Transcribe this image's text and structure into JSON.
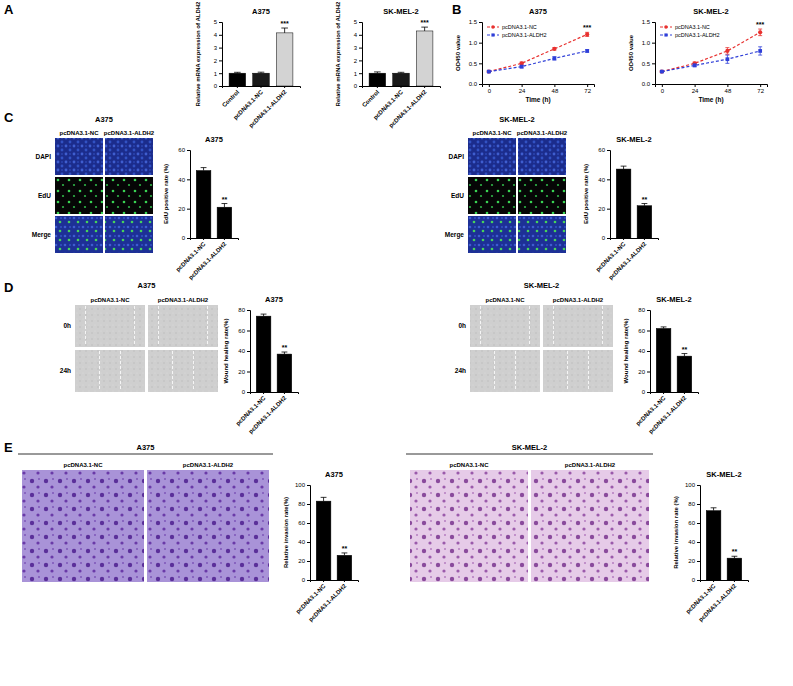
{
  "panel_letters": [
    "A",
    "B",
    "C",
    "D",
    "E"
  ],
  "chart_data": [
    {
      "type": "bar",
      "title": "A375",
      "y_label": "Relative mRNA expression of ALDH2",
      "categories": [
        "Control",
        "pcDNA3.1-NC",
        "pcDNA3.1-ALDH2"
      ],
      "values": [
        1.0,
        1.0,
        4.15
      ],
      "errors": [
        0.07,
        0.08,
        0.38
      ],
      "significance": [
        null,
        null,
        "***"
      ],
      "colors": [
        "#000000",
        "#1a1a1a",
        "#d3d3d3"
      ],
      "ylim": [
        0,
        5
      ],
      "yticks": [
        0,
        1,
        2,
        3,
        4,
        5
      ]
    },
    {
      "type": "bar",
      "title": "SK-MEL-2",
      "y_label": "Relative mRNA expression of ALDH2",
      "categories": [
        "Control",
        "pcDNA3.1-NC",
        "pcDNA3.1-ALDH2"
      ],
      "values": [
        1.0,
        1.0,
        4.3
      ],
      "errors": [
        0.1,
        0.07,
        0.3
      ],
      "significance": [
        null,
        null,
        "***"
      ],
      "colors": [
        "#000000",
        "#1a1a1a",
        "#d3d3d3"
      ],
      "ylim": [
        0,
        5
      ],
      "yticks": [
        0,
        1,
        2,
        3,
        4,
        5
      ]
    },
    {
      "type": "line",
      "title": "A375",
      "x_label": "Time (h)",
      "y_label": "OD450 value",
      "x": [
        0,
        24,
        48,
        72
      ],
      "xlim": [
        -5,
        77
      ],
      "xticks": [
        0,
        24,
        48,
        72
      ],
      "ylim": [
        0,
        1.5
      ],
      "yticks": [
        {
          "value": 0,
          "label": "0.0"
        },
        {
          "value": 0.5,
          "label": "0.5"
        },
        {
          "value": 1.0,
          "label": "1.0"
        },
        {
          "value": 1.5,
          "label": "1.5"
        }
      ],
      "legend": "upper left",
      "series": [
        {
          "name": "pcDNA3.1-NC",
          "color": "#e8312f",
          "marker": "circle",
          "line_style": "dashed",
          "values": [
            0.3,
            0.5,
            0.85,
            1.2
          ],
          "errors": [
            0.02,
            0.03,
            0.03,
            0.05
          ]
        },
        {
          "name": "pcDNA3.1-ALDH2",
          "color": "#2f3fd8",
          "marker": "square",
          "line_style": "dashed",
          "values": [
            0.3,
            0.42,
            0.62,
            0.8
          ],
          "errors": [
            0.02,
            0.03,
            0.04,
            0.03
          ]
        }
      ],
      "significance": [
        null,
        null,
        null,
        "***"
      ]
    },
    {
      "type": "line",
      "title": "SK-MEL-2",
      "x_label": "Time (h)",
      "y_label": "OD450 value",
      "x": [
        0,
        24,
        48,
        72
      ],
      "xlim": [
        -5,
        77
      ],
      "xticks": [
        0,
        24,
        48,
        72
      ],
      "ylim": [
        0,
        1.5
      ],
      "yticks": [
        {
          "value": 0,
          "label": "0.0"
        },
        {
          "value": 0.5,
          "label": "0.5"
        },
        {
          "value": 1.0,
          "label": "1.0"
        },
        {
          "value": 1.5,
          "label": "1.5"
        }
      ],
      "legend": "upper left",
      "series": [
        {
          "name": "pcDNA3.1-NC",
          "color": "#e8312f",
          "marker": "circle",
          "line_style": "dashed",
          "values": [
            0.3,
            0.5,
            0.8,
            1.25
          ],
          "errors": [
            0.02,
            0.03,
            0.08,
            0.08
          ]
        },
        {
          "name": "pcDNA3.1-ALDH2",
          "color": "#2f3fd8",
          "marker": "square",
          "line_style": "dashed",
          "values": [
            0.3,
            0.45,
            0.6,
            0.8
          ],
          "errors": [
            0.02,
            0.03,
            0.1,
            0.1
          ]
        }
      ],
      "significance": [
        null,
        null,
        null,
        "***"
      ]
    },
    {
      "type": "bar",
      "title": "A375",
      "y_label": "EdU positive rate (%)",
      "categories": [
        "pcDNA3.1-NC",
        "pcDNA3.1-ALDH2"
      ],
      "values": [
        46,
        21
      ],
      "errors": [
        2,
        2.5
      ],
      "significance": [
        null,
        "**"
      ],
      "color": "#000000",
      "ylim": [
        0,
        60
      ],
      "yticks": [
        0,
        20,
        40,
        60
      ]
    },
    {
      "type": "bar",
      "title": "SK-MEL-2",
      "y_label": "EdU positive rate (%)",
      "categories": [
        "pcDNA3.1-NC",
        "pcDNA3.1-ALDH2"
      ],
      "values": [
        47,
        22
      ],
      "errors": [
        2,
        1.5
      ],
      "significance": [
        null,
        "**"
      ],
      "color": "#000000",
      "ylim": [
        0,
        60
      ],
      "yticks": [
        0,
        20,
        40,
        60
      ]
    },
    {
      "type": "bar",
      "title": "A375",
      "y_label": "Wound healing rate(%)",
      "categories": [
        "pcDNA3.1-NC",
        "pcDNA3.1-ALDH2"
      ],
      "values": [
        74,
        37
      ],
      "errors": [
        2,
        2
      ],
      "significance": [
        null,
        "**"
      ],
      "color": "#000000",
      "ylim": [
        0,
        80
      ],
      "yticks": [
        0,
        20,
        40,
        60,
        80
      ]
    },
    {
      "type": "bar",
      "title": "SK-MEL-2",
      "y_label": "Wound healing rate(%)",
      "categories": [
        "pcDNA3.1-NC",
        "pcDNA3.1-ALDH2"
      ],
      "values": [
        62,
        35
      ],
      "errors": [
        1.5,
        2.5
      ],
      "significance": [
        null,
        "**"
      ],
      "color": "#000000",
      "ylim": [
        0,
        80
      ],
      "yticks": [
        0,
        20,
        40,
        60,
        80
      ]
    },
    {
      "type": "bar",
      "title": "A375",
      "y_label": "Relative invasion rate(%)",
      "categories": [
        "pcDNA3.1-NC",
        "pcDNA3.1-ALDH2"
      ],
      "values": [
        83,
        26
      ],
      "errors": [
        4,
        2.5
      ],
      "significance": [
        null,
        "**"
      ],
      "color": "#000000",
      "ylim": [
        0,
        100
      ],
      "yticks": [
        0,
        20,
        40,
        60,
        80,
        100
      ]
    },
    {
      "type": "bar",
      "title": "SK-MEL-2",
      "y_label": "Relative invasion rate (%)",
      "categories": [
        "pcDNA3.1-NC",
        "pcDNA3.1-ALDH2"
      ],
      "values": [
        73,
        23
      ],
      "errors": [
        3,
        2
      ],
      "significance": [
        null,
        "**"
      ],
      "color": "#000000",
      "ylim": [
        0,
        100
      ],
      "yticks": [
        0,
        20,
        40,
        60,
        80,
        100
      ]
    }
  ],
  "image_grids": [
    {
      "title": "A375",
      "columns": [
        "pcDNA3.1-NC",
        "pcDNA3.1-ALDH2"
      ],
      "rows": [
        "DAPI",
        "EdU",
        "Merge"
      ]
    },
    {
      "title": "SK-MEL-2",
      "columns": [
        "pcDNA3.1-NC",
        "pcDNA3.1-ALDH2"
      ],
      "rows": [
        "DAPI",
        "EdU",
        "Merge"
      ]
    },
    {
      "title": "A375",
      "columns": [
        "pcDNA3.1-NC",
        "pcDNA3.1-ALDH2"
      ],
      "rows": [
        "0h",
        "24h"
      ]
    },
    {
      "title": "SK-MEL-2",
      "columns": [
        "pcDNA3.1-NC",
        "pcDNA3.1-ALDH2"
      ],
      "rows": [
        "0h",
        "24h"
      ]
    },
    {
      "title": "A375",
      "columns": [
        "pcDNA3.1-NC",
        "pcDNA3.1-ALDH2"
      ],
      "rows": [
        null
      ]
    },
    {
      "title": "SK-MEL-2",
      "columns": [
        "pcDNA3.1-NC",
        "pcDNA3.1-ALDH2"
      ],
      "rows": [
        null
      ]
    }
  ]
}
